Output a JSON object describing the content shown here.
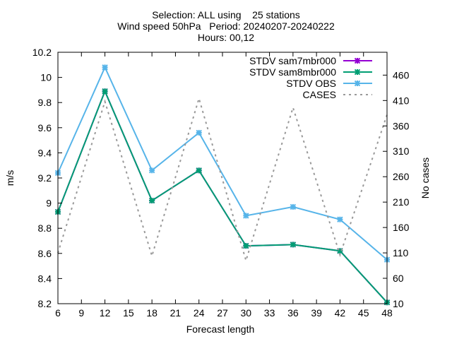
{
  "chart_data": {
    "type": "line",
    "title_lines": [
      "Selection: ALL using    25 stations",
      "Wind speed 50hPa   Period: 20240207-20240222",
      "Hours: 00,12"
    ],
    "xlabel": "Forecast length",
    "ylabel": "m/s",
    "y2label": "No cases",
    "xlim": [
      6,
      48
    ],
    "ylim": [
      8.2,
      10.2
    ],
    "y2lim": [
      10,
      505
    ],
    "xticks": [
      6,
      9,
      12,
      15,
      18,
      21,
      24,
      27,
      30,
      33,
      36,
      39,
      42,
      45,
      48
    ],
    "yticks": [
      "8.2",
      "8.4",
      "8.6",
      "8.8",
      "9",
      "9.2",
      "9.4",
      "9.6",
      "9.8",
      "10",
      "10.2"
    ],
    "y2ticks": [
      10,
      60,
      110,
      160,
      210,
      260,
      310,
      360,
      410,
      460
    ],
    "grid": false,
    "legend_position": "top-right",
    "x": [
      6,
      12,
      18,
      24,
      30,
      36,
      42,
      48
    ],
    "series": [
      {
        "name": "STDV sam7mbr000",
        "axis": "y",
        "color": "#9400d3",
        "marker": "x",
        "dashed": false,
        "values": [
          8.93,
          9.89,
          9.02,
          9.26,
          8.66,
          8.67,
          8.62,
          8.21
        ]
      },
      {
        "name": "STDV sam8mbr000",
        "axis": "y",
        "color": "#009e73",
        "marker": "x",
        "dashed": false,
        "values": [
          8.93,
          9.89,
          9.02,
          9.26,
          8.66,
          8.67,
          8.62,
          8.21
        ]
      },
      {
        "name": "STDV OBS",
        "axis": "y",
        "color": "#56b4e9",
        "marker": "x",
        "dashed": false,
        "values": [
          9.24,
          10.08,
          9.26,
          9.56,
          8.9,
          8.97,
          8.87,
          8.55
        ]
      },
      {
        "name": "CASES",
        "axis": "y2",
        "color": "#999999",
        "marker": "none",
        "dashed": true,
        "values": [
          110,
          408,
          104,
          414,
          95,
          396,
          106,
          382
        ]
      }
    ]
  }
}
